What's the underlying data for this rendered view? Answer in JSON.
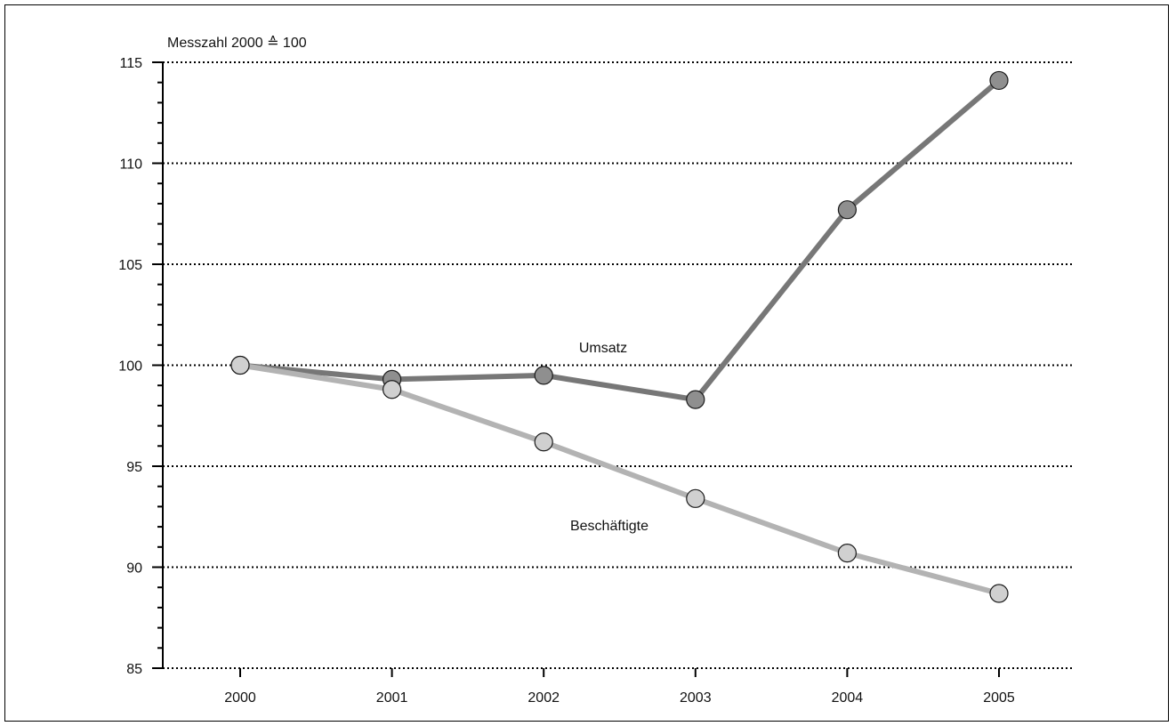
{
  "chart_data": {
    "type": "line",
    "ylabel": "Messzahl  2000 ≙ 100",
    "x": [
      "2000",
      "2001",
      "2002",
      "2003",
      "2004",
      "2005"
    ],
    "ylim": [
      85,
      115
    ],
    "yticks": [
      "85",
      "90",
      "95",
      "100",
      "105",
      "110",
      "115"
    ],
    "grid": true,
    "series": [
      {
        "name": "Umsatz",
        "values": [
          100,
          99.3,
          99.5,
          98.3,
          107.7,
          114.1
        ],
        "color": "#777777",
        "marker_color": "#8f8f8f"
      },
      {
        "name": "Beschäftigte",
        "values": [
          100,
          98.8,
          96.2,
          93.4,
          90.7,
          88.7
        ],
        "color": "#b3b3b3",
        "marker_color": "#d0d0d0"
      }
    ]
  }
}
